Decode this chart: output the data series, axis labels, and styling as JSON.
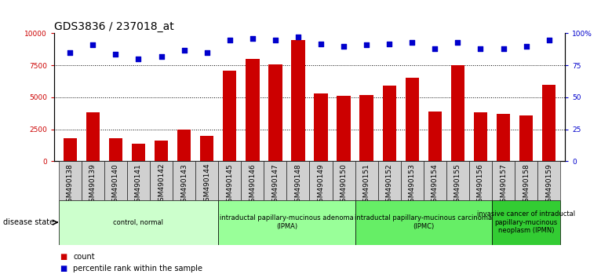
{
  "title": "GDS3836 / 237018_at",
  "samples": [
    "GSM490138",
    "GSM490139",
    "GSM490140",
    "GSM490141",
    "GSM490142",
    "GSM490143",
    "GSM490144",
    "GSM490145",
    "GSM490146",
    "GSM490147",
    "GSM490148",
    "GSM490149",
    "GSM490150",
    "GSM490151",
    "GSM490152",
    "GSM490153",
    "GSM490154",
    "GSM490155",
    "GSM490156",
    "GSM490157",
    "GSM490158",
    "GSM490159"
  ],
  "counts": [
    1800,
    3800,
    1800,
    1400,
    1600,
    2500,
    2000,
    7100,
    8000,
    7600,
    9500,
    5300,
    5100,
    5200,
    5900,
    6500,
    3900,
    7500,
    3800,
    3700,
    3600,
    6000
  ],
  "percentiles": [
    85,
    91,
    84,
    80,
    82,
    87,
    85,
    95,
    96,
    95,
    97,
    92,
    90,
    91,
    92,
    93,
    88,
    93,
    88,
    88,
    90,
    95
  ],
  "bar_color": "#cc0000",
  "dot_color": "#0000cc",
  "ylim_left": [
    0,
    10000
  ],
  "ylim_right": [
    0,
    100
  ],
  "yticks_left": [
    0,
    2500,
    5000,
    7500,
    10000
  ],
  "yticks_right": [
    0,
    25,
    50,
    75,
    100
  ],
  "ytick_labels_left": [
    "0",
    "2500",
    "5000",
    "7500",
    "10000"
  ],
  "ytick_labels_right": [
    "0",
    "25",
    "50",
    "75",
    "100%"
  ],
  "groups": [
    {
      "label": "control, normal",
      "start": 0,
      "end": 7,
      "color": "#ccffcc"
    },
    {
      "label": "intraductal papillary-mucinous adenoma\n(IPMA)",
      "start": 7,
      "end": 13,
      "color": "#99ff99"
    },
    {
      "label": "intraductal papillary-mucinous carcinoma\n(IPMC)",
      "start": 13,
      "end": 19,
      "color": "#66ee66"
    },
    {
      "label": "invasive cancer of intraductal\npapillary-mucinous\nneoplasm (IPMN)",
      "start": 19,
      "end": 22,
      "color": "#33cc33"
    }
  ],
  "disease_state_label": "disease state",
  "legend_count_label": "count",
  "legend_pct_label": "percentile rank within the sample",
  "plot_bg_color": "#ffffff",
  "xtick_bg_color": "#d0d0d0",
  "title_fontsize": 10,
  "tick_fontsize": 6.5,
  "group_fontsize": 6.0,
  "legend_fontsize": 7
}
